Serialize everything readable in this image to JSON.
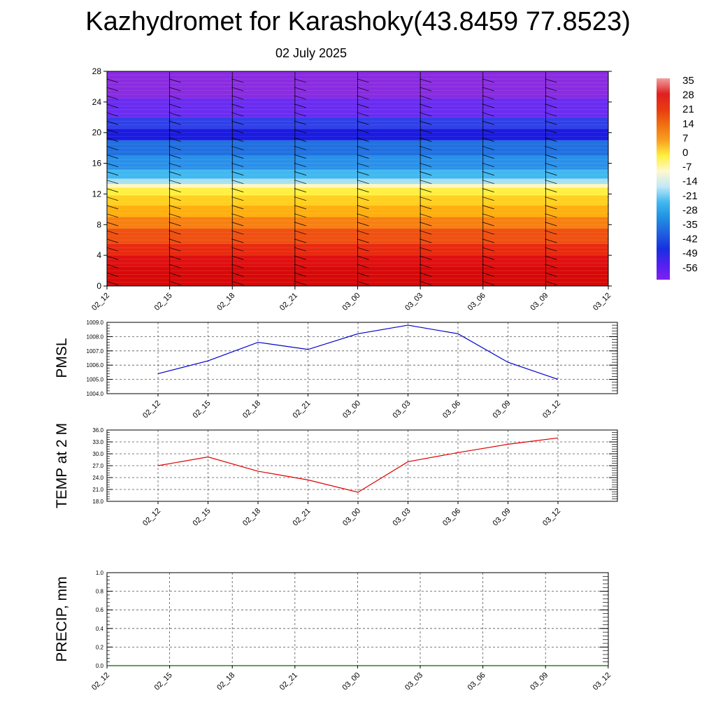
{
  "title": "Kazhydromet for Karashoky(43.8459 77.8523)",
  "subtitle": "02 July 2025",
  "colors": {
    "pmsl_line": "#0000cc",
    "temp_line": "#dd0000",
    "precip_line": "#006600",
    "grid": "#555555"
  },
  "chart_data": [
    {
      "type": "heatmap",
      "name": "cross-section",
      "x_categories": [
        "02_12",
        "02_15",
        "02_18",
        "02_21",
        "03_00",
        "03_03",
        "03_06",
        "03_09",
        "03_12"
      ],
      "y_ticks": [
        0,
        4,
        8,
        12,
        16,
        20,
        24,
        28
      ],
      "ylim": [
        0,
        28
      ],
      "colorbar": {
        "labels": [
          "35",
          "28",
          "21",
          "14",
          "7",
          "0",
          "-7",
          "-14",
          "-21",
          "-28",
          "-35",
          "-42",
          "-49",
          "-56"
        ],
        "stops": [
          "#f0a0a0",
          "#e02020",
          "#e83a10",
          "#f07010",
          "#f8a020",
          "#fff040",
          "#fff8d0",
          "#c0e8f8",
          "#40b8f0",
          "#2090e0",
          "#2060e0",
          "#1830e0",
          "#5020f0",
          "#8020f0"
        ]
      },
      "field_layers": [
        {
          "top": 28,
          "color": "#8a2be2"
        },
        {
          "top": 24.5,
          "color": "#6a2cf0"
        },
        {
          "top": 22,
          "color": "#3040e8"
        },
        {
          "top": 20.5,
          "color": "#1a1ae0"
        },
        {
          "top": 19,
          "color": "#2070e0"
        },
        {
          "top": 17,
          "color": "#2a90e8"
        },
        {
          "top": 15.2,
          "color": "#40b8f0"
        },
        {
          "top": 14,
          "color": "#a8e0f0"
        },
        {
          "top": 13.3,
          "color": "#fff8c0"
        },
        {
          "top": 12.8,
          "color": "#fff040"
        },
        {
          "top": 11.8,
          "color": "#ffd020"
        },
        {
          "top": 10.5,
          "color": "#ffb010"
        },
        {
          "top": 9,
          "color": "#f88010"
        },
        {
          "top": 7.5,
          "color": "#f05010"
        },
        {
          "top": 5.5,
          "color": "#e82a10"
        },
        {
          "top": 4,
          "color": "#e01010"
        },
        {
          "top": 2.5,
          "color": "#d80808"
        }
      ]
    },
    {
      "type": "line",
      "name": "PMSL",
      "ylabel": "PMSL",
      "x_categories": [
        "02_12",
        "02_15",
        "02_18",
        "02_21",
        "03_00",
        "03_03",
        "03_06",
        "03_09",
        "03_12"
      ],
      "values": [
        1005.4,
        1006.3,
        1007.6,
        1007.1,
        1008.2,
        1008.8,
        1008.2,
        1006.2,
        1005.0
      ],
      "y_ticks": [
        "1004.0",
        "1005.0",
        "1006.0",
        "1007.0",
        "1008.0",
        "1009.0"
      ],
      "ylim": [
        1004.0,
        1009.0
      ]
    },
    {
      "type": "line",
      "name": "TEMP at 2 M",
      "ylabel": "TEMP at 2 M",
      "x_categories": [
        "02_12",
        "02_15",
        "02_18",
        "02_21",
        "03_00",
        "03_03",
        "03_06",
        "03_09",
        "03_12"
      ],
      "values": [
        27.0,
        29.2,
        25.6,
        23.4,
        20.3,
        28.0,
        30.3,
        32.4,
        34.0
      ],
      "y_ticks": [
        "18.0",
        "21.0",
        "24.0",
        "27.0",
        "30.0",
        "33.0",
        "36.0"
      ],
      "ylim": [
        18.0,
        36.0
      ]
    },
    {
      "type": "line",
      "name": "PRECIP, mm",
      "ylabel": "PRECIP, mm",
      "x_categories": [
        "02_12",
        "02_15",
        "02_18",
        "02_21",
        "03_00",
        "03_03",
        "03_06",
        "03_09",
        "03_12"
      ],
      "values": [
        0,
        0,
        0,
        0,
        0,
        0,
        0,
        0,
        0
      ],
      "y_ticks": [
        "0.0",
        "0.2",
        "0.4",
        "0.6",
        "0.8",
        "1.0"
      ],
      "ylim": [
        0.0,
        1.0
      ]
    }
  ]
}
